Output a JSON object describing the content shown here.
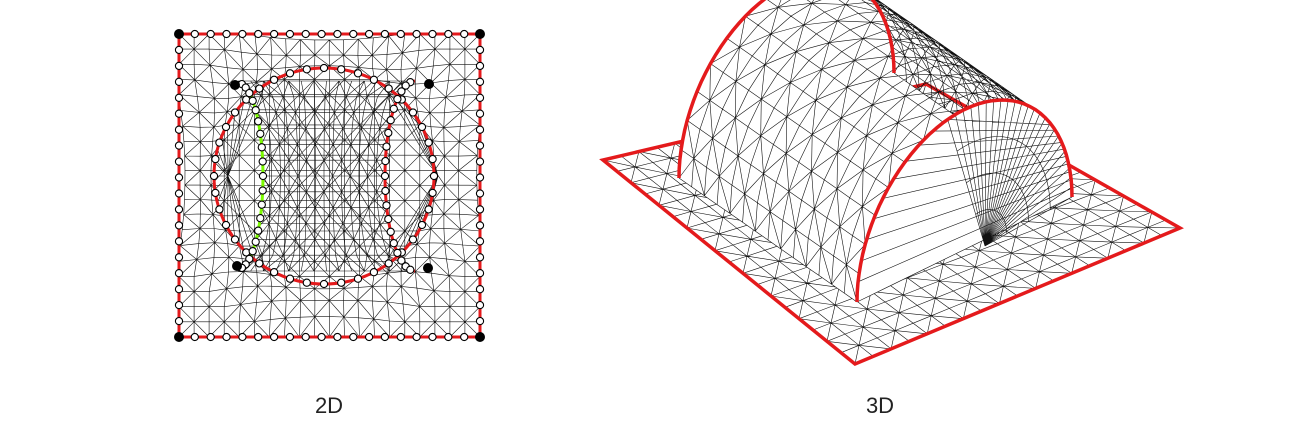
{
  "captions": {
    "left": "2D",
    "right": "3D"
  },
  "colors": {
    "boundary": "#e41a1c",
    "seam": "#7cfc00",
    "mesh": "#111111",
    "background": "#ffffff"
  }
}
